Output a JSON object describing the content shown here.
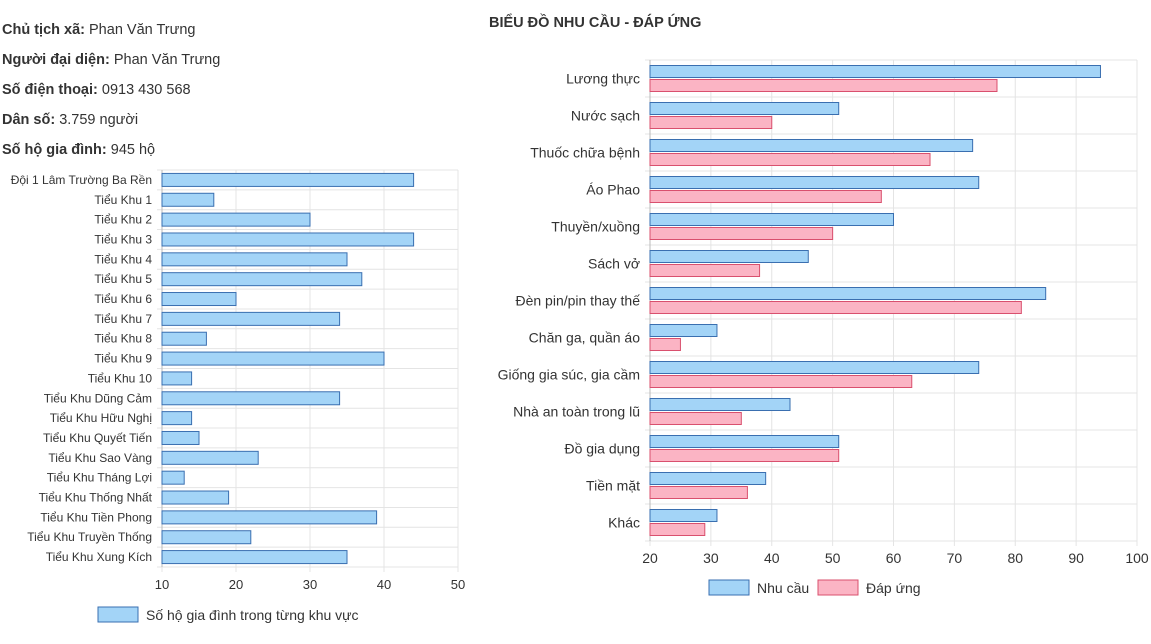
{
  "info": {
    "chairman_label": "Chủ tịch xã:",
    "chairman_value": "Phan Văn Trưng",
    "representative_label": "Người đại diện:",
    "representative_value": "Phan Văn Trưng",
    "phone_label": "Số điện thoại:",
    "phone_value": "0913 430 568",
    "population_label": "Dân số:",
    "population_value": "3.759 người",
    "households_label": "Số hộ gia đình:",
    "households_value": "945 hộ"
  },
  "colors": {
    "need_fill": "#a3d4f7",
    "need_stroke": "#3a6fb0",
    "supply_fill": "#fbb4c4",
    "supply_stroke": "#d9506e",
    "grid": "#e4e4e4",
    "text": "#333333"
  },
  "chart_data": [
    {
      "type": "bar",
      "orientation": "horizontal",
      "title": "",
      "categories": [
        "Đội 1 Lâm Trường Ba Rền",
        "Tiểu Khu 1",
        "Tiểu Khu 2",
        "Tiểu Khu 3",
        "Tiểu Khu 4",
        "Tiểu Khu 5",
        "Tiểu Khu 6",
        "Tiểu Khu 7",
        "Tiểu Khu 8",
        "Tiểu Khu 9",
        "Tiểu Khu 10",
        "Tiểu Khu Dũng Cảm",
        "Tiểu Khu Hữu Nghị",
        "Tiểu Khu Quyết Tiến",
        "Tiểu Khu Sao Vàng",
        "Tiểu Khu Tháng Lợi",
        "Tiểu Khu Thống Nhất",
        "Tiểu Khu Tiền Phong",
        "Tiểu Khu Truyền Thống",
        "Tiểu Khu Xung Kích"
      ],
      "series": [
        {
          "name": "Số hộ gia đình trong từng khu vực",
          "values": [
            44,
            17,
            30,
            44,
            35,
            37,
            20,
            34,
            16,
            40,
            14,
            34,
            14,
            15,
            23,
            13,
            19,
            39,
            22,
            35
          ]
        }
      ],
      "xlim": [
        10,
        50
      ],
      "xticks": [
        10,
        20,
        30,
        40,
        50
      ],
      "legend": "bottom"
    },
    {
      "type": "bar",
      "orientation": "horizontal",
      "title": "BIỂU ĐỒ NHU CẦU - ĐÁP ỨNG",
      "categories": [
        "Lương thực",
        "Nước sạch",
        "Thuốc chữa bệnh",
        "Áo Phao",
        "Thuyền/xuồng",
        "Sách vở",
        "Đèn pin/pin thay thế",
        "Chăn ga, quần áo",
        "Giống gia súc, gia cầm",
        "Nhà an toàn trong lũ",
        "Đồ gia dụng",
        "Tiền mặt",
        "Khác"
      ],
      "series": [
        {
          "name": "Nhu cầu",
          "values": [
            94,
            51,
            73,
            74,
            60,
            46,
            85,
            31,
            74,
            43,
            51,
            39,
            31
          ]
        },
        {
          "name": "Đáp ứng",
          "values": [
            77,
            40,
            66,
            58,
            50,
            38,
            81,
            25,
            63,
            35,
            51,
            36,
            29
          ]
        }
      ],
      "xlim": [
        20,
        100
      ],
      "xticks": [
        20,
        30,
        40,
        50,
        60,
        70,
        80,
        90,
        100
      ],
      "legend": "bottom"
    }
  ]
}
